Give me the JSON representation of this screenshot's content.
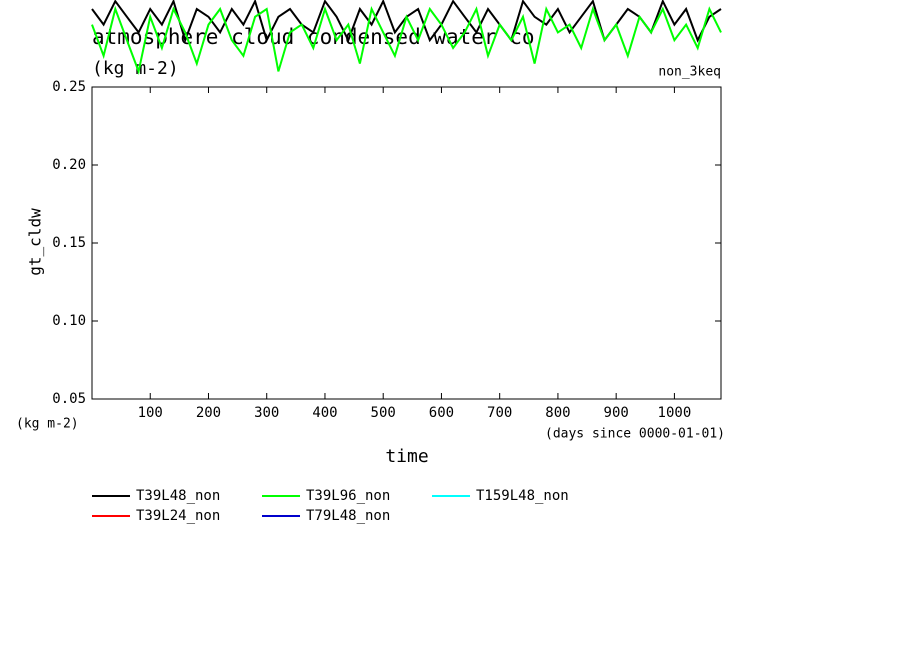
{
  "chart_data": {
    "type": "line",
    "title": "atmosphere cloud condensed water co",
    "subtitle": "(kg m-2)",
    "annotation": "non_3keq",
    "ylabel": "gt_cldw",
    "yunit": "(kg m-2)",
    "xlabel": "time",
    "xunit": "(days since 0000-01-01)",
    "x": [
      0,
      20,
      40,
      60,
      80,
      100,
      120,
      140,
      160,
      180,
      200,
      220,
      240,
      260,
      280,
      300,
      320,
      340,
      360,
      380,
      400,
      420,
      440,
      460,
      480,
      500,
      520,
      540,
      560,
      580,
      600,
      620,
      640,
      660,
      680,
      700,
      720,
      740,
      760,
      780,
      800,
      820,
      840,
      860,
      880,
      900,
      920,
      940,
      960,
      980,
      1000,
      1020,
      1040,
      1060,
      1080
    ],
    "series": [
      {
        "name": "T39L48_non",
        "color": "#000000",
        "values": [
          0.3,
          0.29,
          0.305,
          0.295,
          0.285,
          0.3,
          0.29,
          0.305,
          0.28,
          0.3,
          0.295,
          0.285,
          0.3,
          0.29,
          0.305,
          0.28,
          0.295,
          0.3,
          0.29,
          0.285,
          0.305,
          0.295,
          0.28,
          0.3,
          0.29,
          0.305,
          0.285,
          0.295,
          0.3,
          0.28,
          0.29,
          0.305,
          0.295,
          0.285,
          0.3,
          0.29,
          0.28,
          0.305,
          0.295,
          0.29,
          0.3,
          0.285,
          0.295,
          0.305,
          0.28,
          0.29,
          0.3,
          0.295,
          0.285,
          0.305,
          0.29,
          0.3,
          0.28,
          0.295,
          0.3
        ]
      },
      {
        "name": "T39L24_non",
        "color": "#ff0000",
        "values": [
          null,
          null,
          null,
          null,
          null,
          null,
          null,
          null,
          null,
          null,
          null,
          null,
          null,
          null,
          null,
          null,
          null,
          null,
          null,
          null,
          null,
          null,
          null,
          null,
          null,
          null,
          null,
          null,
          null,
          null,
          null,
          null,
          null,
          null,
          null,
          null,
          null,
          null,
          null,
          null,
          null,
          null,
          null,
          null,
          null,
          null,
          null,
          null,
          null,
          null,
          null,
          null,
          null,
          null,
          null
        ]
      },
      {
        "name": "T39L96_non",
        "color": "#00ff00",
        "values": [
          0.29,
          0.27,
          0.3,
          0.28,
          0.26,
          0.295,
          0.275,
          0.3,
          0.285,
          0.265,
          0.29,
          0.3,
          0.28,
          0.27,
          0.295,
          0.3,
          0.26,
          0.285,
          0.29,
          0.275,
          0.3,
          0.28,
          0.29,
          0.265,
          0.3,
          0.285,
          0.27,
          0.295,
          0.28,
          0.3,
          0.29,
          0.275,
          0.285,
          0.3,
          0.27,
          0.29,
          0.28,
          0.295,
          0.265,
          0.3,
          0.285,
          0.29,
          0.275,
          0.3,
          0.28,
          0.29,
          0.27,
          0.295,
          0.285,
          0.3,
          0.28,
          0.29,
          0.275,
          0.3,
          0.285
        ]
      },
      {
        "name": "T79L48_non",
        "color": "#0000cc",
        "values": [
          null,
          null,
          null,
          null,
          null,
          null,
          null,
          null,
          null,
          null,
          null,
          null,
          null,
          null,
          null,
          null,
          null,
          null,
          null,
          null,
          null,
          null,
          null,
          null,
          null,
          null,
          null,
          null,
          null,
          null,
          null,
          null,
          null,
          null,
          null,
          null,
          null,
          null,
          null,
          null,
          null,
          null,
          null,
          null,
          null,
          null,
          null,
          null,
          null,
          null,
          null,
          null,
          null,
          null,
          null
        ]
      },
      {
        "name": "T159L48_non",
        "color": "#00ffff",
        "values": [
          null,
          null,
          null,
          null,
          null,
          null,
          null,
          null,
          null,
          null,
          null,
          null,
          null,
          null,
          null,
          null,
          null,
          null,
          null,
          null,
          null,
          null,
          null,
          null,
          null,
          null,
          null,
          null,
          null,
          null,
          null,
          null,
          null,
          null,
          null,
          null,
          null,
          null,
          null,
          null,
          null,
          null,
          null,
          null,
          null,
          null,
          null,
          null,
          null,
          null,
          null,
          null,
          null,
          null,
          null
        ]
      }
    ],
    "xlim": [
      0,
      1080
    ],
    "xticks": [
      100,
      200,
      300,
      400,
      500,
      600,
      700,
      800,
      900,
      1000
    ],
    "ylim": [
      0.05,
      0.25
    ],
    "yticks": [
      0.05,
      {
        "value": 0.1,
        "label": "0.10"
      },
      0.15,
      {
        "value": 0.2,
        "label": "0.20"
      },
      0.25
    ]
  }
}
